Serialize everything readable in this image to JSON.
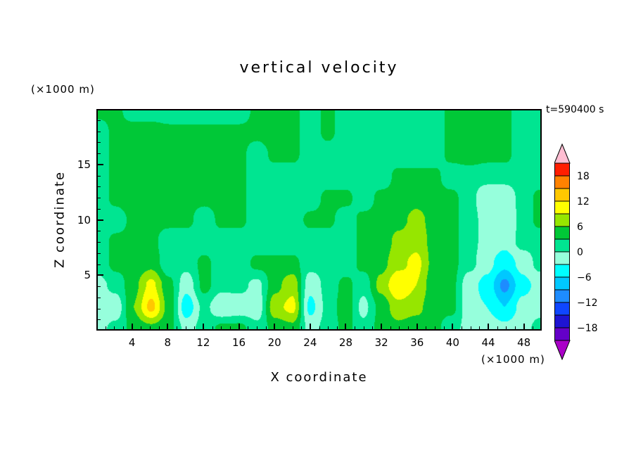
{
  "chart_data": {
    "type": "filled_contour",
    "title": "vertical velocity",
    "time_label": "t=590400 s",
    "x_label": "X coordinate",
    "x_unit": "(×1000 m)",
    "z_label": "Z coordinate",
    "z_unit": "(×1000 m)",
    "x_range": [
      0,
      50
    ],
    "z_range": [
      0,
      20
    ],
    "x_ticks": [
      4,
      8,
      12,
      16,
      20,
      24,
      28,
      32,
      36,
      40,
      44,
      48
    ],
    "z_ticks": [
      5,
      10,
      15
    ],
    "minor_tick_step": 1,
    "interval": 3,
    "band_colors": [
      "#6400c8",
      "#1e14d2",
      "#0f46ff",
      "#1e8cff",
      "#00c8ff",
      "#00ffff",
      "#96ffdc",
      "#00e591",
      "#00c837",
      "#96e600",
      "#ffff00",
      "#ffc800",
      "#ff8200",
      "#ff1e00"
    ],
    "colorbar": {
      "max": 21,
      "min": -21,
      "arrow_top": "#ffbed2",
      "arrow_bottom": "#aa00c8",
      "labels": [
        {
          "v": 18,
          "t": "18"
        },
        {
          "v": 12,
          "t": "12"
        },
        {
          "v": 6,
          "t": "6"
        },
        {
          "v": 0,
          "t": "0"
        },
        {
          "v": -6,
          "t": "−6"
        },
        {
          "v": -12,
          "t": "−12"
        },
        {
          "v": -18,
          "t": "−18"
        }
      ]
    },
    "grid": {
      "cols": 26,
      "rows": 11,
      "order": "rows top (z=20) to bottom (z=0), x from 0 to 50 step 2",
      "values": [
        [
          4,
          4,
          1,
          1,
          1,
          1,
          1,
          1,
          1,
          4,
          5,
          4,
          1,
          4,
          1,
          1,
          1,
          1,
          1,
          1,
          4,
          5,
          5,
          4,
          1,
          1
        ],
        [
          1,
          4,
          5,
          5,
          4,
          4,
          4,
          4,
          4,
          4,
          5,
          4,
          1,
          4,
          1,
          1,
          1,
          1,
          1,
          1,
          4,
          5,
          5,
          4,
          1,
          1
        ],
        [
          1,
          4,
          5,
          5,
          4,
          4,
          4,
          4,
          4,
          1,
          4,
          4,
          1,
          1,
          1,
          1,
          1,
          1,
          1,
          1,
          4,
          5,
          4,
          4,
          1,
          1
        ],
        [
          1,
          4,
          5,
          4,
          4,
          4,
          4,
          4,
          4,
          1,
          1,
          1,
          1,
          1,
          1,
          1,
          1,
          4,
          4,
          4,
          1,
          1,
          1,
          1,
          1,
          1
        ],
        [
          1,
          4,
          5,
          5,
          4,
          4,
          4,
          4,
          4,
          1,
          1,
          1,
          1,
          4,
          4,
          1,
          4,
          4,
          5,
          4,
          4,
          1,
          -2,
          -2,
          1,
          4
        ],
        [
          1,
          1,
          4,
          4,
          4,
          4,
          1,
          4,
          4,
          1,
          1,
          1,
          4,
          4,
          1,
          4,
          4,
          5,
          7,
          5,
          4,
          1,
          -1,
          -3,
          1,
          4
        ],
        [
          1,
          4,
          4,
          4,
          1,
          1,
          1,
          1,
          1,
          1,
          1,
          1,
          1,
          1,
          1,
          4,
          4,
          7,
          8,
          5,
          4,
          1,
          -1,
          -2,
          1,
          1
        ],
        [
          1,
          4,
          4,
          5,
          1,
          1,
          4,
          1,
          1,
          4,
          4,
          4,
          1,
          1,
          1,
          4,
          5,
          8,
          10,
          5,
          4,
          1,
          -2,
          -5,
          -2,
          1
        ],
        [
          -1,
          1,
          5,
          10,
          4,
          -2,
          4,
          1,
          1,
          -1,
          5,
          8,
          -2,
          1,
          4,
          1,
          7,
          12,
          9,
          4,
          4,
          -2,
          -4,
          -10,
          -4,
          -2
        ],
        [
          -2,
          -2,
          6,
          13,
          5,
          -5,
          1,
          -3,
          -2,
          -2,
          8,
          10,
          -4,
          1,
          5,
          -1,
          4,
          8,
          7,
          4,
          4,
          -2,
          -3,
          -6,
          -2,
          -1
        ],
        [
          -1,
          1,
          4,
          5,
          4,
          -1,
          1,
          4,
          4,
          1,
          4,
          5,
          -1,
          1,
          4,
          1,
          4,
          5,
          4,
          4,
          1,
          -1,
          -1,
          -2,
          -1,
          1
        ]
      ]
    }
  }
}
